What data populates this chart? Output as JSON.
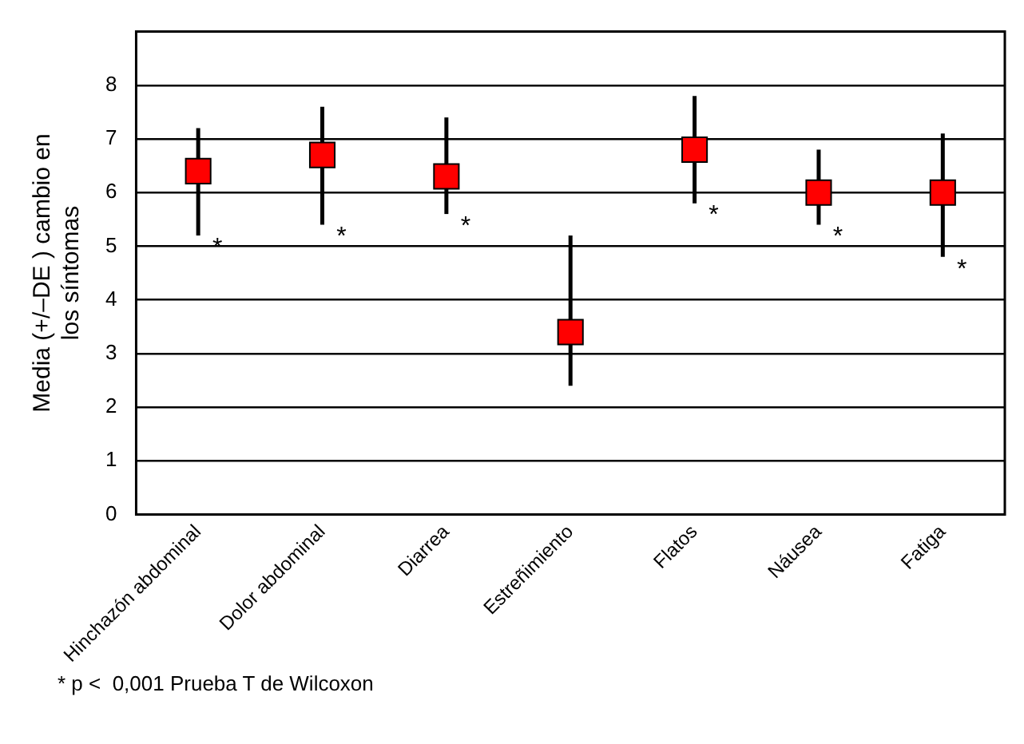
{
  "chart_data": {
    "type": "scatter",
    "marker": "square",
    "ylabel": "Media (+/–DE ) cambio en los síntomas",
    "categories": [
      "Hinchazón abdominal",
      "Dolor abdominal",
      "Diarrea",
      "Estreñimiento",
      "Flatos",
      "Náusea",
      "Fatiga"
    ],
    "series": [
      {
        "color": "#ff0000",
        "values": [
          6.4,
          6.7,
          6.3,
          3.4,
          6.8,
          6.0,
          6.0
        ],
        "errors": [
          [
            5.2,
            7.2
          ],
          [
            5.4,
            7.6
          ],
          [
            5.6,
            7.4
          ],
          [
            2.4,
            5.2
          ],
          [
            5.8,
            7.8
          ],
          [
            5.4,
            6.8
          ],
          [
            4.8,
            7.1
          ]
        ]
      }
    ],
    "ylim": [
      0,
      9
    ],
    "yticks": [
      0,
      1,
      2,
      3,
      4,
      5,
      6,
      7,
      8
    ],
    "grid": "y",
    "legend": false,
    "annotations": [
      {
        "text": "*",
        "x": "Hinchazón abdominal",
        "y": 5.2
      },
      {
        "text": "*",
        "x": "Dolor abdominal",
        "y": 5.4
      },
      {
        "text": "*",
        "x": "Diarrea",
        "y": 5.6
      },
      {
        "text": "*",
        "x": "Flatos",
        "y": 5.8
      },
      {
        "text": "*",
        "x": "Náusea",
        "y": 5.4
      },
      {
        "text": "*",
        "x": "Fatiga",
        "y": 4.8
      },
      "* p <  0,001 Prueba T de Wilcoxon"
    ]
  }
}
